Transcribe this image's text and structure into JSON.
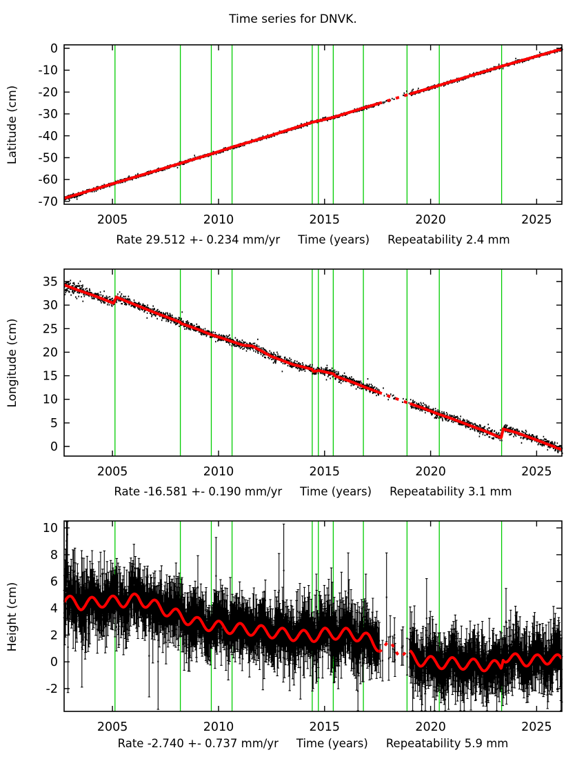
{
  "title": "Time series for DNVK.",
  "station": "DNVK",
  "colors": {
    "background": "#ffffff",
    "data_points": "#000000",
    "model_line": "#ff0000",
    "event_line": "#00cc00",
    "axis": "#000000"
  },
  "x_axis": {
    "label": "Time (years)",
    "range": [
      2002.72,
      2026.19
    ],
    "ticks": [
      2005,
      2010,
      2015,
      2020,
      2025
    ]
  },
  "event_lines_years": [
    2005.12,
    2008.2,
    2009.66,
    2010.64,
    2014.42,
    2014.71,
    2015.41,
    2016.83,
    2018.89,
    2020.41,
    2023.35
  ],
  "data_gaps": {
    "sparse_window": [
      2017.55,
      2019.02
    ],
    "sparse_density": 0.15,
    "full_gap": [
      2018.33,
      2018.62
    ]
  },
  "chart_data": [
    {
      "type": "scatter",
      "id": "latitude",
      "ylabel": "Latitude (cm)",
      "ylim": [
        -71.3,
        1.58
      ],
      "yticks": [
        0,
        -10,
        -20,
        -30,
        -40,
        -50,
        -60,
        -70
      ],
      "rate_mm_per_yr": 29.512,
      "rate_sigma_mm_per_yr": 0.234,
      "repeatability_mm": 2.4,
      "caption_rate": "Rate 29.512 +- 0.234 mm/yr",
      "caption_xlabel": "Time (years)",
      "caption_repeat": "Repeatability 2.4 mm",
      "marker": "point",
      "noise_sigma_cm": 0.33,
      "early_noise": {
        "before": 2003.6,
        "factor": 1.6
      },
      "outliers": {
        "fraction": 0.03,
        "factor": 2.2
      },
      "model_anchors": [
        [
          2002.72,
          -68.6
        ],
        [
          2005.12,
          -61.6
        ],
        [
          2008.2,
          -52.6
        ],
        [
          2009.66,
          -48.3
        ],
        [
          2010.64,
          -45.2
        ],
        [
          2012.0,
          -41.3
        ],
        [
          2014.42,
          -33.8
        ],
        [
          2014.75,
          -33.1
        ],
        [
          2015.43,
          -31.5
        ],
        [
          2016.83,
          -27.3
        ],
        [
          2018.89,
          -21.3
        ],
        [
          2020.41,
          -16.9
        ],
        [
          2023.35,
          -8.2
        ],
        [
          2026.19,
          -0.3
        ]
      ]
    },
    {
      "type": "scatter",
      "id": "longitude",
      "ylabel": "Longitude (cm)",
      "ylim": [
        -2.05,
        37.64
      ],
      "yticks": [
        35,
        30,
        25,
        20,
        15,
        10,
        5,
        0
      ],
      "rate_mm_per_yr": -16.581,
      "rate_sigma_mm_per_yr": 0.19,
      "repeatability_mm": 3.1,
      "caption_rate": "Rate -16.581 +- 0.190 mm/yr",
      "caption_xlabel": "Time (years)",
      "caption_repeat": "Repeatability 3.1 mm",
      "marker": "point",
      "noise_sigma_cm": 0.42,
      "early_noise": {
        "before": 2003.6,
        "factor": 1.8
      },
      "outliers": {
        "fraction": 0.04,
        "factor": 2.2
      },
      "model_anchors": [
        [
          2002.72,
          34.3
        ],
        [
          2003.3,
          33.3
        ],
        [
          2004.2,
          31.9
        ],
        [
          2005.05,
          30.4
        ],
        [
          2005.18,
          31.7
        ],
        [
          2006.0,
          30.2
        ],
        [
          2007.0,
          28.4
        ],
        [
          2008.18,
          26.4
        ],
        [
          2008.24,
          26.1
        ],
        [
          2009.0,
          24.9
        ],
        [
          2009.66,
          23.7
        ],
        [
          2010.3,
          22.8
        ],
        [
          2010.68,
          22.2
        ],
        [
          2011.15,
          21.5
        ],
        [
          2011.6,
          21.3
        ],
        [
          2012.5,
          19.1
        ],
        [
          2013.5,
          17.4
        ],
        [
          2014.4,
          16.4
        ],
        [
          2014.48,
          15.9
        ],
        [
          2014.73,
          16.1
        ],
        [
          2015.43,
          15.4
        ],
        [
          2015.5,
          14.95
        ],
        [
          2016.4,
          13.5
        ],
        [
          2016.83,
          12.7
        ],
        [
          2017.6,
          11.4
        ],
        [
          2018.89,
          9.3
        ],
        [
          2019.6,
          8.2
        ],
        [
          2020.41,
          6.8
        ],
        [
          2021.0,
          5.9
        ],
        [
          2022.0,
          4.2
        ],
        [
          2022.6,
          3.2
        ],
        [
          2023.33,
          1.8
        ],
        [
          2023.42,
          3.7
        ],
        [
          2024.0,
          3.0
        ],
        [
          2024.8,
          1.7
        ],
        [
          2025.5,
          0.5
        ],
        [
          2026.19,
          -0.7
        ]
      ]
    },
    {
      "type": "scatter",
      "id": "height",
      "ylabel": "Height (cm)",
      "ylim": [
        -3.7,
        10.52
      ],
      "yticks": [
        10,
        8,
        6,
        4,
        2,
        0,
        -2
      ],
      "rate_mm_per_yr": -2.74,
      "rate_sigma_mm_per_yr": 0.737,
      "repeatability_mm": 5.9,
      "caption_rate": "Rate -2.740 +- 0.737 mm/yr",
      "caption_xlabel": "Time (years)",
      "caption_repeat": "Repeatability 5.9 mm",
      "marker": "errorbar",
      "noise_sigma_cm": 0.78,
      "early_noise": {
        "before": 2004.5,
        "factor": 1.25
      },
      "outliers": {
        "fraction": 0.07,
        "factor": 2.2
      },
      "errorbar_halflength_cm": 1.0,
      "seasonal": {
        "amplitude": 0.42,
        "peak_phase": 0.02
      },
      "model_anchors": [
        [
          2002.72,
          4.6
        ],
        [
          2003.5,
          4.3
        ],
        [
          2004.5,
          4.5
        ],
        [
          2005.5,
          4.5
        ],
        [
          2006.2,
          4.7
        ],
        [
          2007.0,
          4.2
        ],
        [
          2008.2,
          3.4
        ],
        [
          2009.0,
          2.9
        ],
        [
          2009.66,
          2.7
        ],
        [
          2010.64,
          2.5
        ],
        [
          2011.5,
          2.4
        ],
        [
          2012.5,
          2.2
        ],
        [
          2013.5,
          2.0
        ],
        [
          2014.42,
          1.9
        ],
        [
          2015.0,
          2.1
        ],
        [
          2016.0,
          2.1
        ],
        [
          2016.83,
          1.9
        ],
        [
          2017.3,
          1.4
        ],
        [
          2017.8,
          1.0
        ],
        [
          2018.3,
          1.1
        ],
        [
          2018.89,
          0.5
        ],
        [
          2019.5,
          0.1
        ],
        [
          2020.41,
          -0.1
        ],
        [
          2021.2,
          -0.1
        ],
        [
          2022.0,
          -0.2
        ],
        [
          2023.33,
          -0.35
        ],
        [
          2023.42,
          0.45
        ],
        [
          2024.2,
          0.1
        ],
        [
          2025.0,
          0.1
        ],
        [
          2025.7,
          0.3
        ],
        [
          2026.19,
          0.0
        ]
      ]
    }
  ]
}
